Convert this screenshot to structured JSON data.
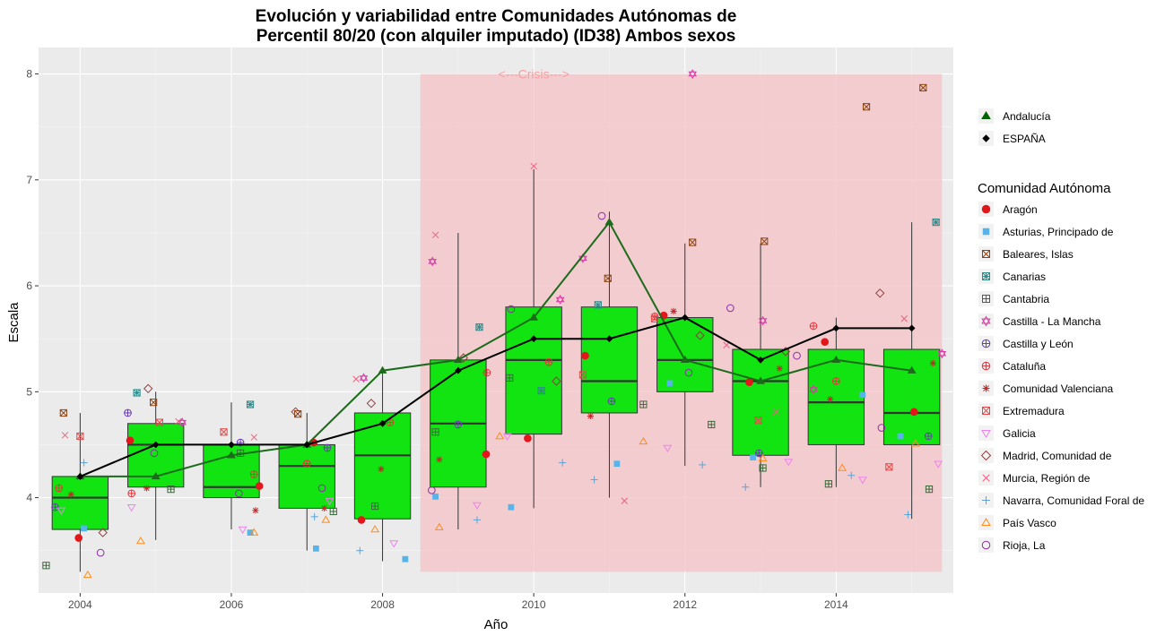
{
  "chart_data": {
    "type": "box",
    "title_line1": "Evolución y variabilidad entre Comunidades Autónomas de",
    "title_line2": "Percentil 80/20 (con alquiler imputado) (ID38) Ambos sexos",
    "xlabel": "Año",
    "ylabel": "Escala",
    "xlim": [
      2003.45,
      2015.55
    ],
    "ylim": [
      3.1,
      8.25
    ],
    "x_ticks": [
      2004,
      2006,
      2008,
      2010,
      2012,
      2014
    ],
    "y_ticks": [
      4,
      5,
      6,
      7,
      8
    ],
    "grid": true,
    "annotation": {
      "text": "<---Crisis--->",
      "x": 2010.0,
      "y": 8.0
    },
    "crisis_region": {
      "x": [
        2008.5,
        2015.4
      ],
      "y": [
        3.3,
        8.0
      ],
      "color": "#f4c2c6"
    },
    "box_color": "#11e411",
    "boxes": [
      {
        "year": 2004,
        "min": 3.3,
        "q1": 3.7,
        "median": 4.0,
        "q3": 4.2,
        "max": 4.8
      },
      {
        "year": 2005,
        "min": 3.6,
        "q1": 4.1,
        "median": 4.5,
        "q3": 4.7,
        "max": 5.0
      },
      {
        "year": 2006,
        "min": 3.7,
        "q1": 4.0,
        "median": 4.1,
        "q3": 4.5,
        "max": 4.9
      },
      {
        "year": 2007,
        "min": 3.5,
        "q1": 3.9,
        "median": 4.3,
        "q3": 4.5,
        "max": 4.8
      },
      {
        "year": 2008,
        "min": 3.4,
        "q1": 3.8,
        "median": 4.4,
        "q3": 4.8,
        "max": 5.2
      },
      {
        "year": 2009,
        "min": 3.7,
        "q1": 4.1,
        "median": 4.7,
        "q3": 5.3,
        "max": 6.5
      },
      {
        "year": 2010,
        "min": 3.9,
        "q1": 4.6,
        "median": 5.3,
        "q3": 5.8,
        "max": 7.1
      },
      {
        "year": 2011,
        "min": 4.0,
        "q1": 4.8,
        "median": 5.1,
        "q3": 5.8,
        "max": 6.7
      },
      {
        "year": 2012,
        "min": 4.3,
        "q1": 5.0,
        "median": 5.3,
        "q3": 5.7,
        "max": 6.4
      },
      {
        "year": 2013,
        "min": 4.1,
        "q1": 4.4,
        "median": 5.1,
        "q3": 5.4,
        "max": 6.4
      },
      {
        "year": 2014,
        "min": 4.1,
        "q1": 4.5,
        "median": 4.9,
        "q3": 5.4,
        "max": 5.7
      },
      {
        "year": 2015,
        "min": 3.8,
        "q1": 4.5,
        "median": 4.8,
        "q3": 5.4,
        "max": 6.6
      }
    ],
    "lines": [
      {
        "name": "Andalucía",
        "color": "#1b6b1b",
        "shape": "triangle",
        "x": [
          2004,
          2005,
          2006,
          2007,
          2008,
          2009,
          2010,
          2011,
          2012,
          2013,
          2014,
          2015
        ],
        "y": [
          4.2,
          4.2,
          4.4,
          4.5,
          5.2,
          5.3,
          5.7,
          6.6,
          5.3,
          5.1,
          5.3,
          5.2
        ]
      },
      {
        "name": "ESPAÑA",
        "color": "#000000",
        "shape": "diamond",
        "x": [
          2004,
          2005,
          2006,
          2007,
          2008,
          2009,
          2010,
          2011,
          2012,
          2013,
          2014,
          2015
        ],
        "y": [
          4.2,
          4.5,
          4.5,
          4.5,
          4.7,
          5.2,
          5.5,
          5.5,
          5.7,
          5.3,
          5.6,
          5.6
        ]
      }
    ],
    "legend_top": [
      {
        "label": "Andalucía",
        "shape": "triangle",
        "color": "#006400"
      },
      {
        "label": "ESPAÑA",
        "shape": "diamond",
        "color": "#000000"
      }
    ],
    "legend_title": "Comunidad Autónoma",
    "series": [
      {
        "name": "Aragón",
        "shape": "circle-filled",
        "color": "#e3161b",
        "x": [
          2003.98,
          2004.66,
          2006.37,
          2007.09,
          2007.72,
          2009.37,
          2009.92,
          2010.68,
          2011.72,
          2012.85,
          2013.85,
          2015.03
        ],
        "y": [
          3.62,
          4.54,
          4.11,
          4.52,
          3.79,
          4.41,
          4.56,
          5.34,
          5.72,
          5.09,
          5.47,
          4.81
        ]
      },
      {
        "name": "Asturias, Principado de",
        "shape": "square-filled",
        "color": "#56b4e9",
        "x": [
          2004.05,
          2006.25,
          2007.12,
          2008.3,
          2008.7,
          2009.7,
          2011.1,
          2011.8,
          2012.9,
          2014.35,
          2014.85
        ],
        "y": [
          3.71,
          3.67,
          3.52,
          3.42,
          4.01,
          3.91,
          4.32,
          5.08,
          4.38,
          4.97,
          4.58
        ]
      },
      {
        "name": "Baleares, Islas",
        "shape": "square-x",
        "color": "#8b4513",
        "x": [
          2003.78,
          2004.97,
          2006.88,
          2010.98,
          2012.1,
          2013.05,
          2014.4,
          2015.15
        ],
        "y": [
          4.8,
          4.9,
          4.79,
          6.07,
          6.41,
          6.42,
          7.69,
          7.87
        ]
      },
      {
        "name": "Canarias",
        "shape": "square-star",
        "color": "#2e8b8b",
        "x": [
          2004.75,
          2006.25,
          2009.28,
          2010.1,
          2010.85,
          2015.32
        ],
        "y": [
          4.99,
          4.88,
          5.61,
          5.01,
          5.82,
          6.6
        ]
      },
      {
        "name": "Cantabria",
        "shape": "square-plus",
        "color": "#3a6b3a",
        "x": [
          2003.55,
          2005.2,
          2006.12,
          2007.35,
          2007.9,
          2008.7,
          2009.68,
          2011.45,
          2012.35,
          2013.03,
          2013.9,
          2015.23
        ],
        "y": [
          3.36,
          4.08,
          4.42,
          3.87,
          3.92,
          4.62,
          5.13,
          4.88,
          4.69,
          4.28,
          4.13,
          4.08
        ]
      },
      {
        "name": "Castilla - La Mancha",
        "shape": "hexagram",
        "color": "#d63fa5",
        "x": [
          2005.35,
          2007.75,
          2008.66,
          2010.35,
          2010.65,
          2012.1,
          2013.03,
          2013.7,
          2015.4
        ],
        "y": [
          4.71,
          5.13,
          6.23,
          5.87,
          6.26,
          8.0,
          5.67,
          5.02,
          5.36
        ]
      },
      {
        "name": "Castilla y León",
        "shape": "circle-plus",
        "color": "#6a3ab5",
        "x": [
          2003.67,
          2004.63,
          2006.12,
          2007.27,
          2009.0,
          2011.03,
          2012.98,
          2015.22
        ],
        "y": [
          3.91,
          4.8,
          4.52,
          4.47,
          4.69,
          4.91,
          4.42,
          4.58
        ]
      },
      {
        "name": "Cataluña",
        "shape": "circle-plus",
        "color": "#e8343a",
        "x": [
          2003.72,
          2004.68,
          2006.3,
          2007.0,
          2008.1,
          2009.38,
          2010.2,
          2011.6,
          2013.7,
          2014.0
        ],
        "y": [
          4.09,
          4.04,
          4.22,
          4.32,
          4.71,
          5.18,
          5.28,
          5.71,
          5.62,
          5.1
        ]
      },
      {
        "name": "Comunidad Valenciana",
        "shape": "asterisk",
        "color": "#c0282a",
        "x": [
          2003.88,
          2004.88,
          2006.32,
          2007.23,
          2007.98,
          2008.75,
          2010.75,
          2011.85,
          2013.25,
          2013.92,
          2015.28
        ],
        "y": [
          4.03,
          4.09,
          3.88,
          3.9,
          4.27,
          4.36,
          4.77,
          5.76,
          5.22,
          4.93,
          5.27
        ]
      },
      {
        "name": "Extremadura",
        "shape": "square-x",
        "color": "#e34a4a",
        "x": [
          2004.0,
          2005.05,
          2005.9,
          2010.65,
          2011.6,
          2012.97,
          2014.7
        ],
        "y": [
          4.58,
          4.71,
          4.62,
          5.16,
          5.69,
          4.73,
          4.29
        ]
      },
      {
        "name": "Galicia",
        "shape": "triangle-down",
        "color": "#ee82ee",
        "x": [
          2003.75,
          2004.68,
          2006.15,
          2007.3,
          2008.15,
          2009.25,
          2009.65,
          2011.77,
          2013.37,
          2014.35,
          2015.35
        ],
        "y": [
          3.88,
          3.91,
          3.7,
          3.97,
          3.57,
          3.93,
          4.58,
          4.47,
          4.34,
          4.17,
          4.32
        ]
      },
      {
        "name": "Madrid, Comunidad de",
        "shape": "diamond-open",
        "color": "#8b4040",
        "x": [
          2004.3,
          2004.9,
          2006.85,
          2007.85,
          2009.07,
          2010.3,
          2012.2,
          2013.33,
          2014.58
        ],
        "y": [
          3.67,
          5.03,
          4.81,
          4.89,
          5.32,
          5.1,
          5.53,
          5.38,
          5.93
        ]
      },
      {
        "name": "Murcia, Región de",
        "shape": "cross-x",
        "color": "#f06080",
        "x": [
          2003.8,
          2005.3,
          2006.3,
          2007.65,
          2008.7,
          2010.0,
          2011.2,
          2012.55,
          2013.2,
          2014.9
        ],
        "y": [
          4.59,
          4.72,
          4.57,
          5.12,
          6.48,
          7.13,
          3.97,
          5.44,
          4.81,
          5.69
        ]
      },
      {
        "name": "Navarra, Comunidad Foral de",
        "shape": "plus",
        "color": "#5aa5d6",
        "x": [
          2004.05,
          2007.1,
          2007.7,
          2009.25,
          2010.38,
          2010.8,
          2012.23,
          2012.8,
          2014.2,
          2014.95
        ],
        "y": [
          4.33,
          3.82,
          3.5,
          3.79,
          4.33,
          4.17,
          4.31,
          4.1,
          4.21,
          3.84
        ]
      },
      {
        "name": "País Vasco",
        "shape": "triangle-open",
        "color": "#ff8c1a",
        "x": [
          2004.1,
          2004.8,
          2006.3,
          2007.25,
          2007.9,
          2008.75,
          2009.55,
          2011.45,
          2013.03,
          2014.08,
          2015.05
        ],
        "y": [
          3.27,
          3.59,
          3.67,
          3.79,
          3.7,
          3.72,
          4.58,
          4.53,
          4.37,
          4.28,
          4.51
        ]
      },
      {
        "name": "Rioja, La",
        "shape": "circle-open",
        "color": "#8b2ea5",
        "x": [
          2004.27,
          2004.98,
          2006.1,
          2007.2,
          2008.65,
          2009.7,
          2010.9,
          2012.05,
          2012.6,
          2013.48,
          2014.6
        ],
        "y": [
          3.48,
          4.42,
          4.04,
          4.09,
          4.07,
          5.78,
          6.66,
          5.18,
          5.79,
          5.34,
          4.66
        ]
      }
    ]
  }
}
